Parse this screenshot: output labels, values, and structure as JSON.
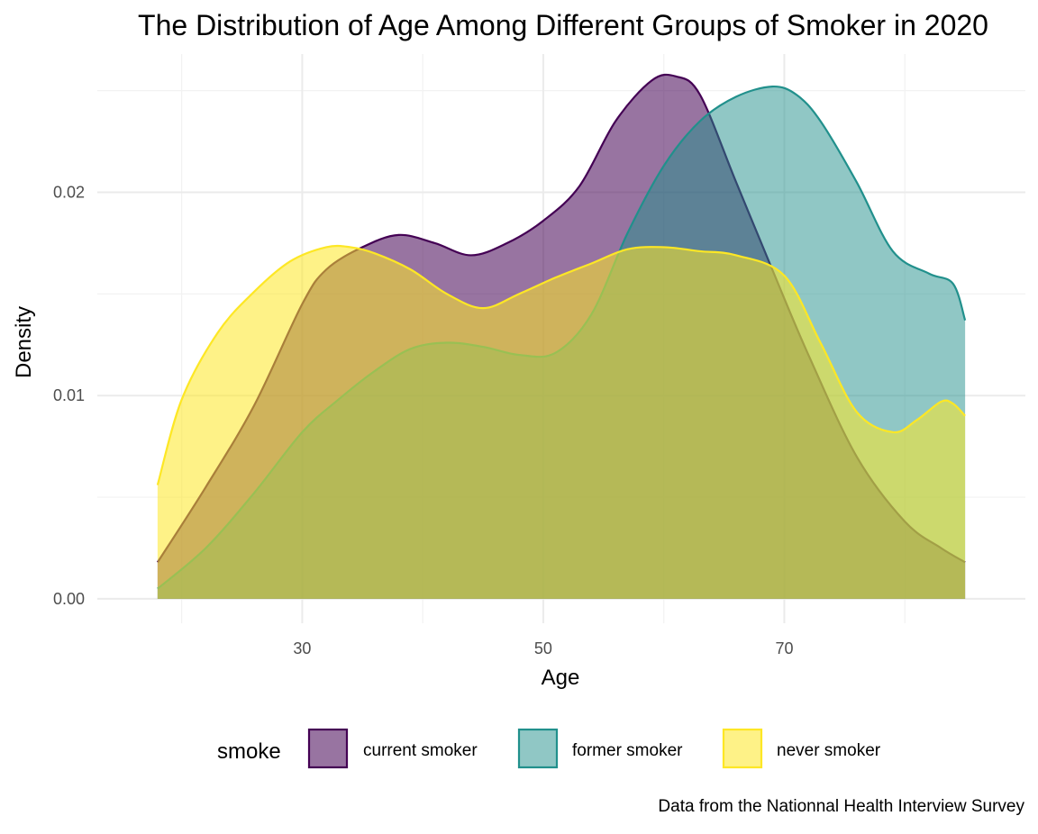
{
  "chart_data": {
    "type": "area",
    "title": "The Distribution of Age Among Different Groups of Smoker in 2020",
    "xlabel": "Age",
    "ylabel": "Density",
    "caption": "Data from the Nationnal Health Interview Survey",
    "xlim": [
      13,
      90
    ],
    "ylim": [
      -0.0012,
      0.0268
    ],
    "x_ticks": [
      30,
      50,
      70
    ],
    "x_tick_labels": [
      "30",
      "50",
      "70"
    ],
    "x_minor_ticks": [
      20,
      40,
      60,
      80
    ],
    "y_ticks": [
      0.0,
      0.01,
      0.02
    ],
    "y_tick_labels": [
      "0.00",
      "0.01",
      "0.02"
    ],
    "y_minor_ticks": [
      0.005,
      0.015,
      0.025
    ],
    "grid": true,
    "legend": {
      "title": "smoke",
      "position": "bottom"
    },
    "series": [
      {
        "name": "current smoker",
        "fill": "#440154",
        "line": "#440154",
        "fill_opacity": 0.55,
        "x": [
          18,
          22,
          26,
          30,
          32,
          35,
          38,
          41,
          44,
          47,
          50,
          53,
          56,
          59,
          61,
          63,
          66,
          69,
          72,
          76,
          80,
          83,
          85
        ],
        "y": [
          0.0018,
          0.0055,
          0.0095,
          0.0145,
          0.0162,
          0.0173,
          0.0179,
          0.0175,
          0.0169,
          0.0175,
          0.0186,
          0.0203,
          0.0235,
          0.0255,
          0.0257,
          0.0248,
          0.0205,
          0.0162,
          0.012,
          0.007,
          0.0038,
          0.0025,
          0.0018
        ]
      },
      {
        "name": "former smoker",
        "fill": "#21908C",
        "line": "#21908C",
        "fill_opacity": 0.5,
        "x": [
          18,
          22,
          26,
          30,
          33,
          36,
          39,
          42,
          45,
          48,
          51,
          54,
          57,
          60,
          63,
          66,
          69,
          71,
          73,
          76,
          79,
          82,
          84,
          85
        ],
        "y": [
          0.0005,
          0.0025,
          0.0052,
          0.0082,
          0.0098,
          0.0112,
          0.0123,
          0.0126,
          0.0124,
          0.012,
          0.0121,
          0.014,
          0.018,
          0.0213,
          0.0235,
          0.0247,
          0.0252,
          0.0248,
          0.0235,
          0.0205,
          0.0171,
          0.016,
          0.0155,
          0.0137
        ]
      },
      {
        "name": "never smoker",
        "fill": "#FDE725",
        "line": "#FDE725",
        "fill_opacity": 0.55,
        "x": [
          18,
          20,
          23,
          26,
          29,
          32,
          34,
          36,
          39,
          42,
          45,
          48,
          51,
          54,
          57,
          60,
          63,
          66,
          70,
          73,
          76,
          79,
          81,
          83,
          84,
          85
        ],
        "y": [
          0.0056,
          0.0098,
          0.0131,
          0.0151,
          0.0166,
          0.0173,
          0.0173,
          0.017,
          0.0162,
          0.015,
          0.0143,
          0.015,
          0.0158,
          0.0165,
          0.0172,
          0.0173,
          0.0171,
          0.0169,
          0.0159,
          0.0126,
          0.0092,
          0.0082,
          0.0088,
          0.0097,
          0.0096,
          0.009
        ]
      }
    ]
  }
}
